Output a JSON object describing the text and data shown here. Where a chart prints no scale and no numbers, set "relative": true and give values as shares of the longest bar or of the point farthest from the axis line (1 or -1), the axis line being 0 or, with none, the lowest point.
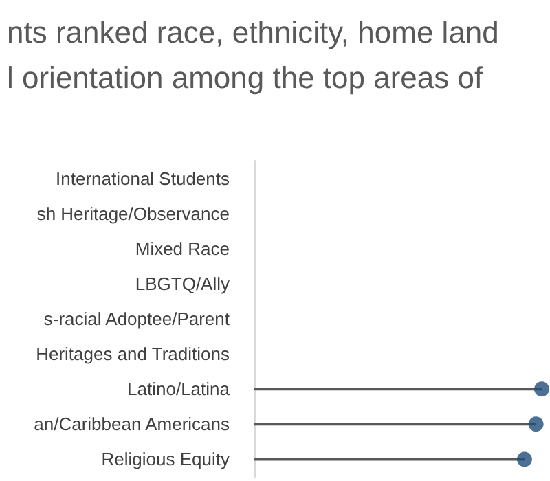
{
  "chart_data": {
    "type": "lollipop",
    "orientation": "horizontal",
    "relative": true,
    "title": "nts ranked race, ethnicity, home land\nl orientation among the top areas of",
    "categories": [
      "International Students",
      "sh Heritage/Observance",
      "Mixed Race",
      "LBGTQ/Ally",
      "s-racial Adoptee/Parent",
      "Heritages and Traditions",
      "Latino/Latina",
      "an/Caribbean Americans",
      "Religious Equity"
    ],
    "values": [
      null,
      null,
      null,
      null,
      null,
      null,
      1,
      0.98,
      0.94
    ],
    "color": "#1f4e79",
    "marker": "circle"
  }
}
